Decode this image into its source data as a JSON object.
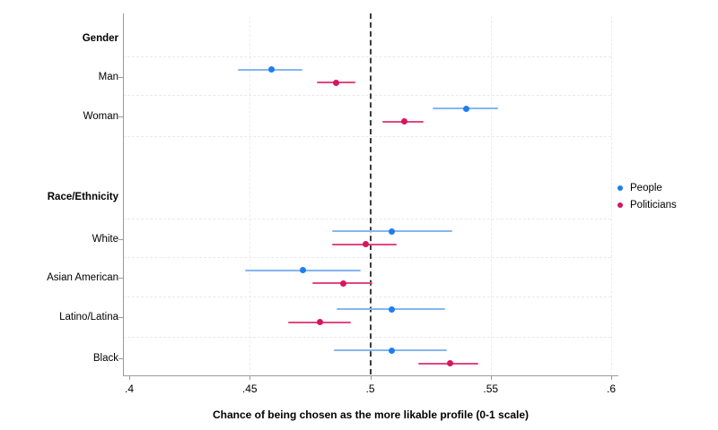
{
  "chart_data": {
    "type": "scatter",
    "variant": "dot-and-whisker coefficient plot",
    "title": "",
    "xlabel": "Chance of being chosen as the more likable profile (0-1 scale)",
    "ylabel": "",
    "xlim": [
      0.4,
      0.6
    ],
    "grid": true,
    "reference_line_x": 0.5,
    "xticks": [
      {
        "value": 0.4,
        "label": ".4"
      },
      {
        "value": 0.45,
        "label": ".45"
      },
      {
        "value": 0.5,
        "label": ".5"
      },
      {
        "value": 0.55,
        "label": ".55"
      },
      {
        "value": 0.6,
        "label": ".6"
      }
    ],
    "groups": [
      {
        "header": "Gender",
        "categories": [
          "Man",
          "Woman"
        ]
      },
      {
        "header": "Race/Ethnicity",
        "categories": [
          "White",
          "Asian American",
          "Latino/Latina",
          "Black"
        ]
      }
    ],
    "legend": {
      "position": "right",
      "entries": [
        "People",
        "Politicians"
      ]
    },
    "series": [
      {
        "name": "People",
        "point_color": "#1e7ef0",
        "ci_color": "#85b6ef",
        "points": [
          {
            "category": "Man",
            "value": 0.459,
            "ci_low": 0.445,
            "ci_high": 0.472
          },
          {
            "category": "Woman",
            "value": 0.54,
            "ci_low": 0.526,
            "ci_high": 0.553
          },
          {
            "category": "White",
            "value": 0.509,
            "ci_low": 0.484,
            "ci_high": 0.534
          },
          {
            "category": "Asian American",
            "value": 0.472,
            "ci_low": 0.448,
            "ci_high": 0.496
          },
          {
            "category": "Latino/Latina",
            "value": 0.509,
            "ci_low": 0.486,
            "ci_high": 0.531
          },
          {
            "category": "Black",
            "value": 0.509,
            "ci_low": 0.485,
            "ci_high": 0.532
          }
        ]
      },
      {
        "name": "Politicians",
        "point_color": "#d61560",
        "ci_color": "#e2487f",
        "points": [
          {
            "category": "Man",
            "value": 0.486,
            "ci_low": 0.478,
            "ci_high": 0.494
          },
          {
            "category": "Woman",
            "value": 0.514,
            "ci_low": 0.505,
            "ci_high": 0.522
          },
          {
            "category": "White",
            "value": 0.498,
            "ci_low": 0.484,
            "ci_high": 0.511
          },
          {
            "category": "Asian American",
            "value": 0.489,
            "ci_low": 0.476,
            "ci_high": 0.501
          },
          {
            "category": "Latino/Latina",
            "value": 0.479,
            "ci_low": 0.466,
            "ci_high": 0.492
          },
          {
            "category": "Black",
            "value": 0.533,
            "ci_low": 0.52,
            "ci_high": 0.545
          }
        ]
      }
    ]
  }
}
